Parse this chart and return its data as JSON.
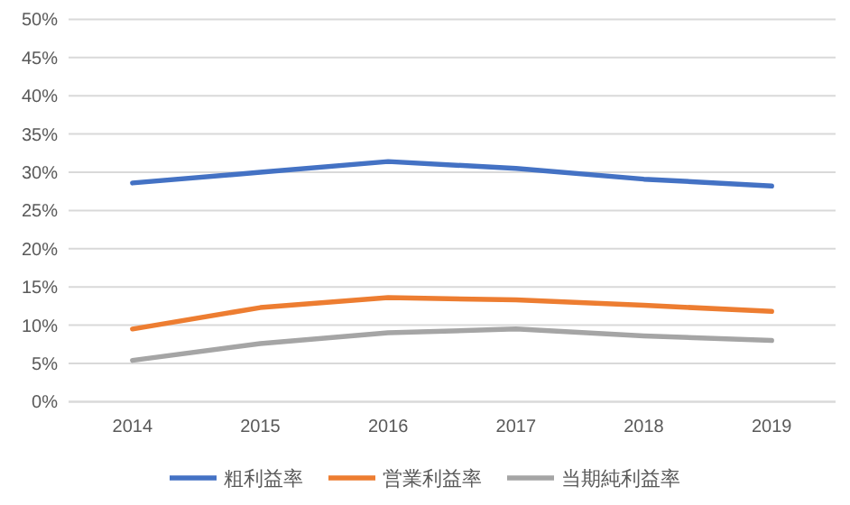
{
  "chart_data": {
    "type": "line",
    "categories": [
      "2014",
      "2015",
      "2016",
      "2017",
      "2018",
      "2019"
    ],
    "series": [
      {
        "name": "粗利益率",
        "color": "#4472c4",
        "values": [
          28.6,
          30.0,
          31.4,
          30.5,
          29.1,
          28.2
        ]
      },
      {
        "name": "営業利益率",
        "color": "#ed7d31",
        "values": [
          9.5,
          12.3,
          13.6,
          13.3,
          12.6,
          11.8
        ]
      },
      {
        "name": "当期純利益率",
        "color": "#a5a5a5",
        "values": [
          5.4,
          7.6,
          9.0,
          9.5,
          8.6,
          8.0
        ]
      }
    ],
    "ylim": [
      0,
      50
    ],
    "yticks": [
      {
        "value": 0,
        "label": "0%"
      },
      {
        "value": 5,
        "label": "5%"
      },
      {
        "value": 10,
        "label": "10%"
      },
      {
        "value": 15,
        "label": "15%"
      },
      {
        "value": 20,
        "label": "20%"
      },
      {
        "value": 25,
        "label": "25%"
      },
      {
        "value": 30,
        "label": "30%"
      },
      {
        "value": 35,
        "label": "35%"
      },
      {
        "value": 40,
        "label": "40%"
      },
      {
        "value": 45,
        "label": "45%"
      },
      {
        "value": 50,
        "label": "50%"
      }
    ],
    "grid": "y",
    "legend": "bottom",
    "marker": "none",
    "line_style": "solid"
  }
}
